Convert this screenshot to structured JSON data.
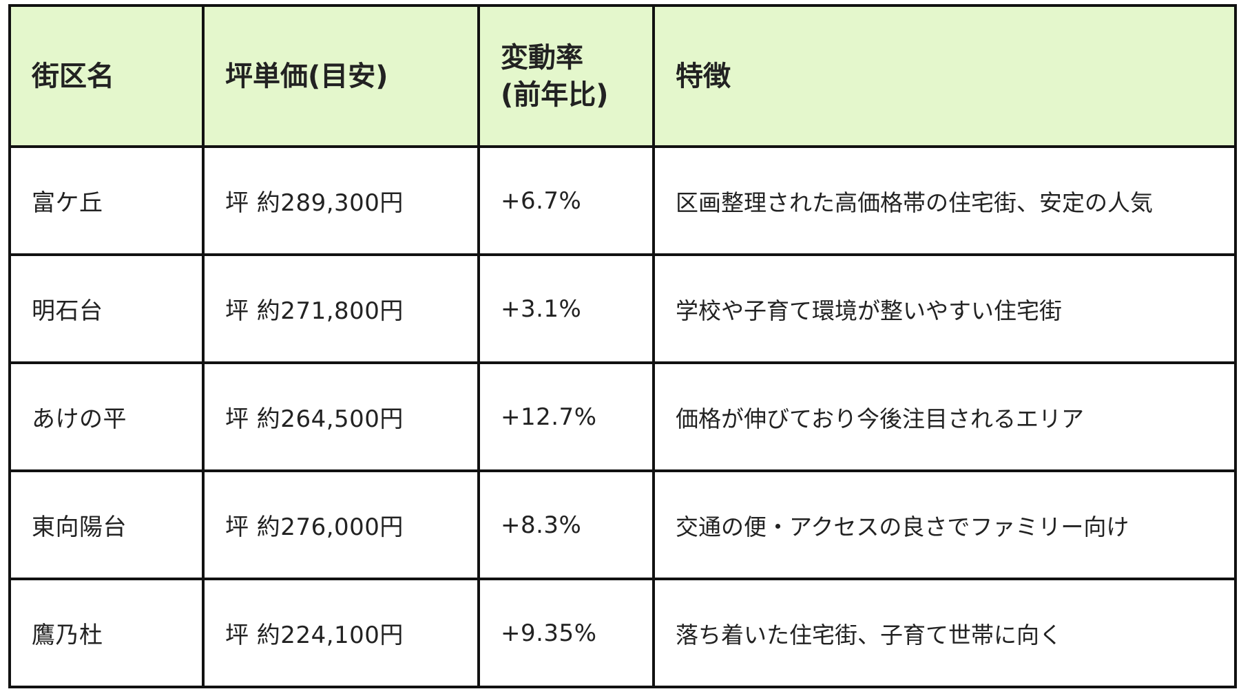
{
  "table": {
    "headers": {
      "area": "街区名",
      "price": "坪単価(目安)",
      "change_line1": "変動率",
      "change_line2": "(前年比)",
      "feature": "特徴"
    },
    "rows": [
      {
        "area": "富ケ丘",
        "price": "坪 約289,300円",
        "change": "+6.7%",
        "feature": "区画整理された高価格帯の住宅街、安定の人気"
      },
      {
        "area": "明石台",
        "price": "坪 約271,800円",
        "change": "+3.1%",
        "feature": "学校や子育て環境が整いやすい住宅街"
      },
      {
        "area": "あけの平",
        "price": "坪 約264,500円",
        "change": "+12.7%",
        "feature": "価格が伸びており今後注目されるエリア"
      },
      {
        "area": "東向陽台",
        "price": "坪 約276,000円",
        "change": "+8.3%",
        "feature": "交通の便・アクセスの良さでファミリー向け"
      },
      {
        "area": "鷹乃杜",
        "price": "坪 約224,100円",
        "change": "+9.35%",
        "feature": "落ち着いた住宅街、子育て世帯に向く"
      }
    ]
  },
  "colors": {
    "header_background": "#e4f7cc",
    "border": "#111111",
    "text": "#222222"
  }
}
